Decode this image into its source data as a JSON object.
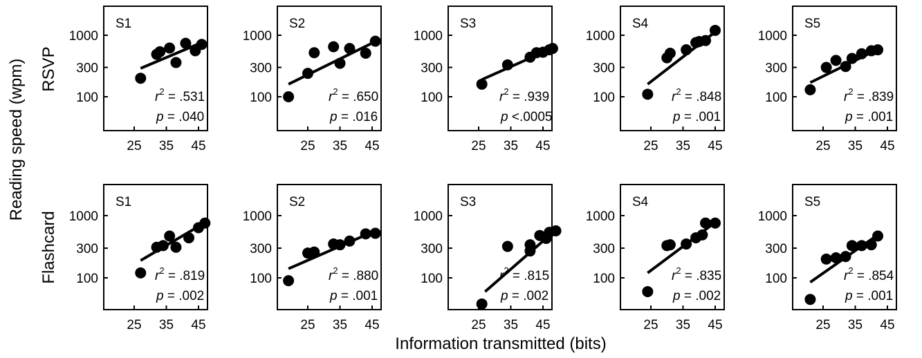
{
  "figure": {
    "ylabel": "Reading speed (wpm)",
    "xlabel": "Information transmitted (bits)",
    "row_labels": [
      "RSVP",
      "Flashcard"
    ]
  },
  "chart_data": [
    {
      "type": "scatter",
      "row": "RSVP",
      "column": 1,
      "panel_label": "S1",
      "log_y": true,
      "ylim": [
        60,
        3000
      ],
      "xlim": [
        15,
        52
      ],
      "x_ticks": [
        25,
        35,
        45
      ],
      "y_ticks": [
        100,
        300,
        1000
      ],
      "points": [
        [
          27,
          200
        ],
        [
          32,
          490
        ],
        [
          33,
          540
        ],
        [
          36,
          620
        ],
        [
          38,
          360
        ],
        [
          41,
          740
        ],
        [
          44,
          560
        ],
        [
          46,
          710
        ]
      ],
      "fit": {
        "x": [
          27,
          46
        ],
        "y": [
          290,
          760
        ]
      },
      "r2_label": ".531",
      "p_label": "p = .040"
    },
    {
      "type": "scatter",
      "row": "RSVP",
      "column": 2,
      "panel_label": "S2",
      "log_y": true,
      "ylim": [
        60,
        3000
      ],
      "xlim": [
        15,
        52
      ],
      "x_ticks": [
        25,
        35,
        45
      ],
      "y_ticks": [
        100,
        300,
        1000
      ],
      "points": [
        [
          19,
          100
        ],
        [
          25,
          240
        ],
        [
          27,
          520
        ],
        [
          33,
          650
        ],
        [
          35,
          350
        ],
        [
          38,
          610
        ],
        [
          43,
          510
        ],
        [
          46,
          800
        ]
      ],
      "fit": {
        "x": [
          19,
          46
        ],
        "y": [
          160,
          790
        ]
      },
      "r2_label": ".650",
      "p_label": "p = .016"
    },
    {
      "type": "scatter",
      "row": "RSVP",
      "column": 3,
      "panel_label": "S3",
      "log_y": true,
      "ylim": [
        60,
        3000
      ],
      "xlim": [
        15,
        52
      ],
      "x_ticks": [
        25,
        35,
        45
      ],
      "y_ticks": [
        100,
        300,
        1000
      ],
      "points": [
        [
          26,
          160
        ],
        [
          34,
          330
        ],
        [
          41,
          440
        ],
        [
          43,
          520
        ],
        [
          45,
          530
        ],
        [
          47,
          580
        ],
        [
          48,
          610
        ]
      ],
      "fit": {
        "x": [
          26,
          48
        ],
        "y": [
          190,
          620
        ]
      },
      "r2_label": ".939",
      "p_label": "p <.0005"
    },
    {
      "type": "scatter",
      "row": "RSVP",
      "column": 4,
      "panel_label": "S4",
      "log_y": true,
      "ylim": [
        60,
        3000
      ],
      "xlim": [
        15,
        52
      ],
      "x_ticks": [
        25,
        35,
        45
      ],
      "y_ticks": [
        100,
        300,
        1000
      ],
      "points": [
        [
          24,
          110
        ],
        [
          30,
          430
        ],
        [
          31,
          510
        ],
        [
          36,
          580
        ],
        [
          39,
          760
        ],
        [
          40,
          790
        ],
        [
          42,
          820
        ],
        [
          45,
          1200
        ]
      ],
      "fit": {
        "x": [
          24,
          45
        ],
        "y": [
          160,
          1130
        ]
      },
      "r2_label": ".848",
      "p_label": "p = .001"
    },
    {
      "type": "scatter",
      "row": "RSVP",
      "column": 5,
      "panel_label": "S5",
      "log_y": true,
      "ylim": [
        60,
        3000
      ],
      "xlim": [
        15,
        52
      ],
      "x_ticks": [
        25,
        35,
        45
      ],
      "y_ticks": [
        100,
        300,
        1000
      ],
      "points": [
        [
          21,
          130
        ],
        [
          26,
          300
        ],
        [
          29,
          390
        ],
        [
          32,
          310
        ],
        [
          34,
          420
        ],
        [
          37,
          500
        ],
        [
          40,
          560
        ],
        [
          42,
          580
        ]
      ],
      "fit": {
        "x": [
          21,
          42
        ],
        "y": [
          170,
          590
        ]
      },
      "r2_label": ".839",
      "p_label": "p = .001"
    },
    {
      "type": "scatter",
      "row": "Flashcard",
      "column": 1,
      "panel_label": "S1",
      "log_y": true,
      "ylim": [
        30,
        3000
      ],
      "xlim": [
        15,
        52
      ],
      "x_ticks": [
        25,
        35,
        45
      ],
      "y_ticks": [
        100,
        300,
        1000
      ],
      "points": [
        [
          27,
          120
        ],
        [
          32,
          310
        ],
        [
          34,
          330
        ],
        [
          36,
          470
        ],
        [
          38,
          310
        ],
        [
          42,
          440
        ],
        [
          45,
          640
        ],
        [
          47,
          760
        ]
      ],
      "fit": {
        "x": [
          27,
          47
        ],
        "y": [
          190,
          770
        ]
      },
      "r2_label": ".819",
      "p_label": "p = .002"
    },
    {
      "type": "scatter",
      "row": "Flashcard",
      "column": 2,
      "panel_label": "S2",
      "log_y": true,
      "ylim": [
        30,
        3000
      ],
      "xlim": [
        15,
        52
      ],
      "x_ticks": [
        25,
        35,
        45
      ],
      "y_ticks": [
        100,
        300,
        1000
      ],
      "points": [
        [
          19,
          90
        ],
        [
          25,
          250
        ],
        [
          27,
          260
        ],
        [
          33,
          350
        ],
        [
          35,
          340
        ],
        [
          38,
          390
        ],
        [
          43,
          510
        ],
        [
          46,
          520
        ]
      ],
      "fit": {
        "x": [
          19,
          46
        ],
        "y": [
          140,
          570
        ]
      },
      "r2_label": ".880",
      "p_label": "p = .001"
    },
    {
      "type": "scatter",
      "row": "Flashcard",
      "column": 3,
      "panel_label": "S3",
      "log_y": true,
      "ylim": [
        30,
        3000
      ],
      "xlim": [
        15,
        52
      ],
      "x_ticks": [
        25,
        35,
        45
      ],
      "y_ticks": [
        100,
        300,
        1000
      ],
      "points": [
        [
          26,
          38
        ],
        [
          34,
          320
        ],
        [
          41,
          270
        ],
        [
          41,
          340
        ],
        [
          44,
          480
        ],
        [
          46,
          430
        ],
        [
          47,
          540
        ],
        [
          49,
          570
        ]
      ],
      "fit": {
        "x": [
          27,
          49
        ],
        "y": [
          60,
          590
        ]
      },
      "r2_label": ".815",
      "p_label": "p = .002"
    },
    {
      "type": "scatter",
      "row": "Flashcard",
      "column": 4,
      "panel_label": "S4",
      "log_y": true,
      "ylim": [
        30,
        3000
      ],
      "xlim": [
        15,
        52
      ],
      "x_ticks": [
        25,
        35,
        45
      ],
      "y_ticks": [
        100,
        300,
        1000
      ],
      "points": [
        [
          24,
          60
        ],
        [
          30,
          330
        ],
        [
          31,
          340
        ],
        [
          36,
          350
        ],
        [
          39,
          440
        ],
        [
          41,
          490
        ],
        [
          42,
          760
        ],
        [
          45,
          760
        ]
      ],
      "fit": {
        "x": [
          24,
          45
        ],
        "y": [
          120,
          780
        ]
      },
      "r2_label": ".835",
      "p_label": "p = .002"
    },
    {
      "type": "scatter",
      "row": "Flashcard",
      "column": 5,
      "panel_label": "S5",
      "log_y": true,
      "ylim": [
        30,
        3000
      ],
      "xlim": [
        15,
        52
      ],
      "x_ticks": [
        25,
        35,
        45
      ],
      "y_ticks": [
        100,
        300,
        1000
      ],
      "points": [
        [
          21,
          45
        ],
        [
          26,
          200
        ],
        [
          29,
          210
        ],
        [
          32,
          220
        ],
        [
          34,
          330
        ],
        [
          37,
          330
        ],
        [
          40,
          340
        ],
        [
          42,
          470
        ]
      ],
      "fit": {
        "x": [
          21,
          42
        ],
        "y": [
          85,
          490
        ]
      },
      "r2_label": ".854",
      "p_label": "p = .001"
    }
  ]
}
